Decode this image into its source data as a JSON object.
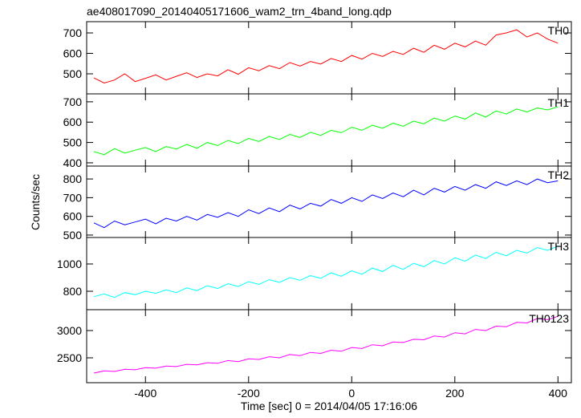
{
  "chart_data": [
    {
      "type": "line",
      "title": "ae408017090_20140405171606_wam2_trn_4band_long.qdp",
      "x": [
        -500,
        -480,
        -460,
        -440,
        -420,
        -400,
        -380,
        -360,
        -340,
        -320,
        -300,
        -280,
        -260,
        -240,
        -220,
        -200,
        -180,
        -160,
        -140,
        -120,
        -100,
        -80,
        -60,
        -40,
        -20,
        0,
        20,
        40,
        60,
        80,
        100,
        120,
        140,
        160,
        180,
        200,
        220,
        240,
        260,
        280,
        300,
        320,
        340,
        360,
        380,
        400
      ],
      "series": [
        {
          "name": "TH0",
          "color": "#ff0000",
          "values": [
            480,
            455,
            470,
            500,
            462,
            478,
            495,
            470,
            488,
            505,
            482,
            500,
            490,
            520,
            498,
            530,
            515,
            540,
            525,
            555,
            538,
            560,
            548,
            575,
            560,
            590,
            572,
            600,
            585,
            610,
            595,
            625,
            605,
            640,
            620,
            650,
            632,
            660,
            640,
            690,
            700,
            715,
            680,
            700,
            670,
            650
          ]
        }
      ],
      "xlim": [
        -514,
        426
      ],
      "xticks": [
        -400,
        -200,
        0,
        200,
        400
      ],
      "ylim": [
        402,
        755
      ],
      "yticks": [
        500,
        600,
        700
      ]
    },
    {
      "type": "line",
      "x": [
        -500,
        -480,
        -460,
        -440,
        -420,
        -400,
        -380,
        -360,
        -340,
        -320,
        -300,
        -280,
        -260,
        -240,
        -220,
        -200,
        -180,
        -160,
        -140,
        -120,
        -100,
        -80,
        -60,
        -40,
        -20,
        0,
        20,
        40,
        60,
        80,
        100,
        120,
        140,
        160,
        180,
        200,
        220,
        240,
        260,
        280,
        300,
        320,
        340,
        360,
        380,
        400
      ],
      "series": [
        {
          "name": "TH1",
          "color": "#00ff00",
          "values": [
            455,
            440,
            470,
            448,
            462,
            475,
            455,
            480,
            468,
            490,
            472,
            500,
            485,
            510,
            495,
            520,
            505,
            530,
            515,
            540,
            525,
            550,
            535,
            560,
            548,
            575,
            560,
            585,
            570,
            595,
            580,
            605,
            592,
            620,
            605,
            630,
            615,
            645,
            625,
            655,
            640,
            665,
            650,
            670,
            660,
            675
          ]
        }
      ],
      "xlim": [
        -514,
        426
      ],
      "xticks": [
        -400,
        -200,
        0,
        200,
        400
      ],
      "ylim": [
        384,
        739
      ],
      "yticks": [
        400,
        500,
        600,
        700
      ]
    },
    {
      "type": "line",
      "ylabel": "Counts/sec",
      "x": [
        -500,
        -480,
        -460,
        -440,
        -420,
        -400,
        -380,
        -360,
        -340,
        -320,
        -300,
        -280,
        -260,
        -240,
        -220,
        -200,
        -180,
        -160,
        -140,
        -120,
        -100,
        -80,
        -60,
        -40,
        -20,
        0,
        20,
        40,
        60,
        80,
        100,
        120,
        140,
        160,
        180,
        200,
        220,
        240,
        260,
        280,
        300,
        320,
        340,
        360,
        380,
        400
      ],
      "series": [
        {
          "name": "TH2",
          "color": "#0000ff",
          "values": [
            565,
            540,
            575,
            555,
            570,
            585,
            560,
            590,
            575,
            600,
            580,
            610,
            595,
            620,
            600,
            635,
            615,
            645,
            625,
            660,
            640,
            670,
            655,
            690,
            670,
            700,
            680,
            715,
            695,
            725,
            705,
            740,
            715,
            750,
            730,
            760,
            740,
            770,
            750,
            785,
            765,
            790,
            770,
            800,
            780,
            790
          ]
        }
      ],
      "xlim": [
        -514,
        426
      ],
      "xticks": [
        -400,
        -200,
        0,
        200,
        400
      ],
      "ylim": [
        487,
        869
      ],
      "yticks": [
        500,
        600,
        700,
        800
      ]
    },
    {
      "type": "line",
      "x": [
        -500,
        -480,
        -460,
        -440,
        -420,
        -400,
        -380,
        -360,
        -340,
        -320,
        -300,
        -280,
        -260,
        -240,
        -220,
        -200,
        -180,
        -160,
        -140,
        -120,
        -100,
        -80,
        -60,
        -40,
        -20,
        0,
        20,
        40,
        60,
        80,
        100,
        120,
        140,
        160,
        180,
        200,
        220,
        240,
        260,
        280,
        300,
        320,
        340,
        360,
        380,
        400
      ],
      "series": [
        {
          "name": "TH3",
          "color": "#00ffff",
          "values": [
            760,
            780,
            755,
            790,
            775,
            800,
            785,
            810,
            790,
            825,
            805,
            840,
            820,
            855,
            835,
            870,
            850,
            885,
            865,
            900,
            880,
            915,
            895,
            935,
            910,
            950,
            925,
            970,
            945,
            990,
            960,
            1005,
            980,
            1025,
            1000,
            1045,
            1020,
            1065,
            1040,
            1085,
            1060,
            1100,
            1080,
            1120,
            1100,
            1130
          ]
        }
      ],
      "xlim": [
        -514,
        426
      ],
      "xticks": [
        -400,
        -200,
        0,
        200,
        400
      ],
      "ylim": [
        665,
        1194
      ],
      "yticks": [
        800,
        1000
      ]
    },
    {
      "type": "line",
      "xlabel": "Time [sec] 0 = 2014/04/05 17:16:06",
      "x": [
        -500,
        -480,
        -460,
        -440,
        -420,
        -400,
        -380,
        -360,
        -340,
        -320,
        -300,
        -280,
        -260,
        -240,
        -220,
        -200,
        -180,
        -160,
        -140,
        -120,
        -100,
        -80,
        -60,
        -40,
        -20,
        0,
        20,
        40,
        60,
        80,
        100,
        120,
        140,
        160,
        180,
        200,
        220,
        240,
        260,
        280,
        300,
        320,
        340,
        360,
        380,
        400
      ],
      "series": [
        {
          "name": "TH0123",
          "color": "#ff00ff",
          "values": [
            2220,
            2260,
            2250,
            2290,
            2280,
            2320,
            2310,
            2350,
            2340,
            2380,
            2370,
            2410,
            2400,
            2450,
            2430,
            2480,
            2470,
            2520,
            2500,
            2560,
            2540,
            2600,
            2580,
            2640,
            2620,
            2690,
            2670,
            2740,
            2720,
            2790,
            2780,
            2840,
            2830,
            2900,
            2880,
            2960,
            2940,
            3020,
            3000,
            3080,
            3070,
            3150,
            3140,
            3220,
            3200,
            3260
          ]
        }
      ],
      "xlim": [
        -514,
        426
      ],
      "xticks": [
        -400,
        -200,
        0,
        200,
        400
      ],
      "ylim": [
        2044,
        3382
      ],
      "yticks": [
        2500,
        3000
      ]
    }
  ]
}
